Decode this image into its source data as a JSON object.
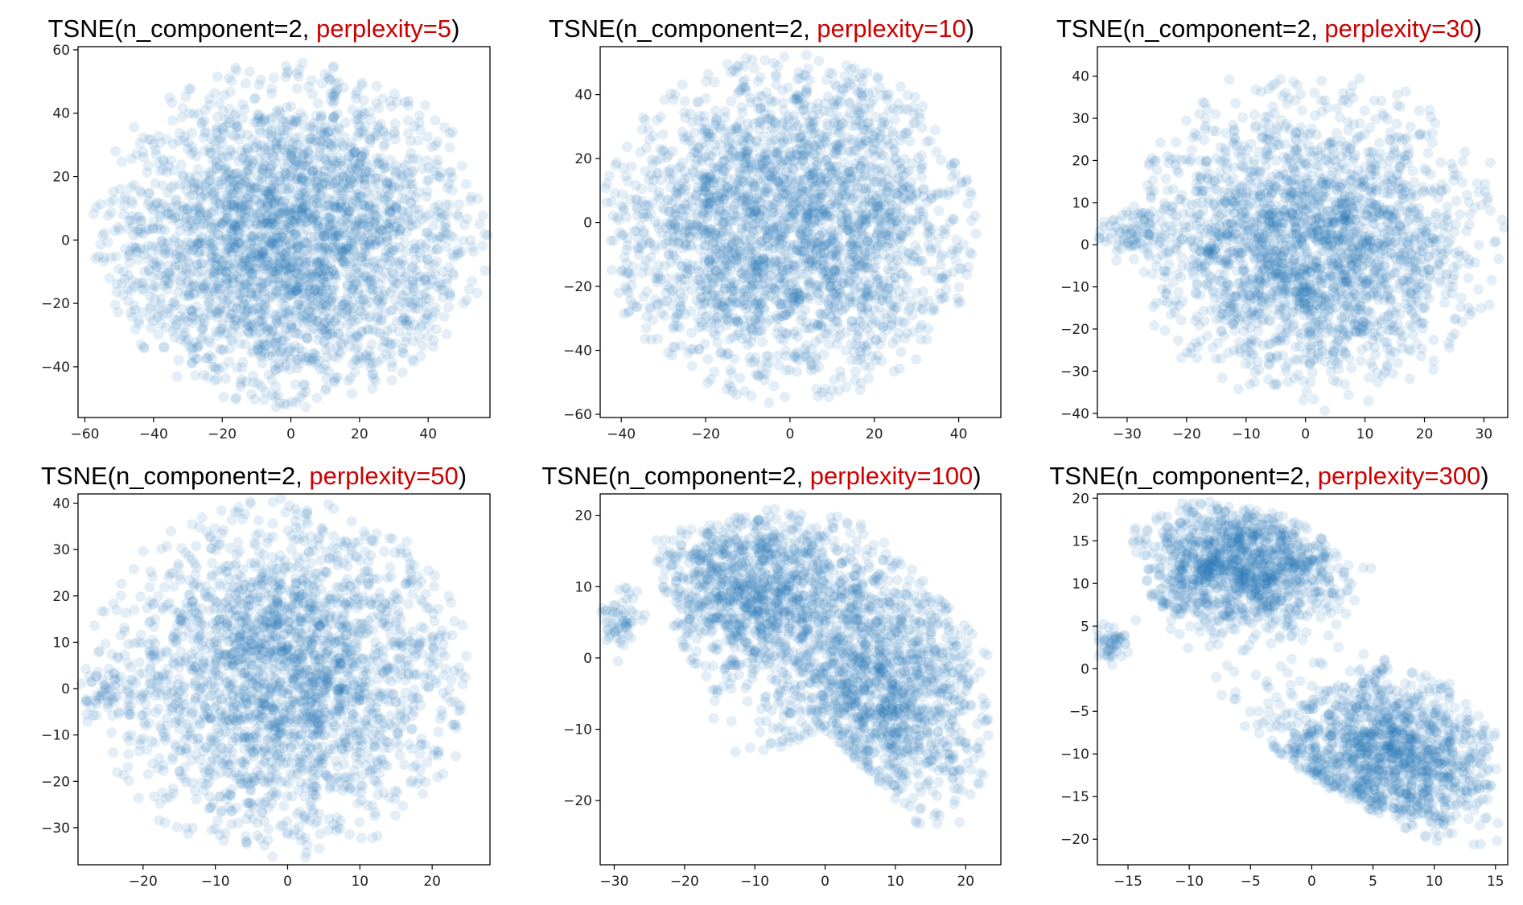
{
  "figure": {
    "panels": [
      {
        "title_prefix": "TSNE(n_component=2, ",
        "title_highlight": "perplexity=5",
        "title_suffix": ")"
      },
      {
        "title_prefix": "TSNE(n_component=2, ",
        "title_highlight": "perplexity=10",
        "title_suffix": ")"
      },
      {
        "title_prefix": "TSNE(n_component=2, ",
        "title_highlight": "perplexity=30",
        "title_suffix": ")"
      },
      {
        "title_prefix": "TSNE(n_component=2, ",
        "title_highlight": "perplexity=50",
        "title_suffix": ")"
      },
      {
        "title_prefix": "TSNE(n_component=2, ",
        "title_highlight": "perplexity=100",
        "title_suffix": ")"
      },
      {
        "title_prefix": "TSNE(n_component=2, ",
        "title_highlight": "perplexity=300",
        "title_suffix": ")"
      }
    ]
  },
  "colors": {
    "points": "#1f77b4",
    "highlight": "#cc0000"
  },
  "chart_data": [
    {
      "type": "scatter",
      "title": "TSNE(n_component=2, perplexity=5)",
      "xlim": [
        -62,
        58
      ],
      "ylim": [
        -56,
        61
      ],
      "xticks": [
        -60,
        -40,
        -20,
        0,
        20,
        40
      ],
      "yticks": [
        -40,
        -20,
        0,
        20,
        40,
        60
      ],
      "xtick_labels": [
        "−60",
        "−40",
        "−20",
        "0",
        "20",
        "40"
      ],
      "ytick_labels": [
        "−40",
        "−20",
        "0",
        "20",
        "40",
        "60"
      ],
      "clusters": [
        {
          "cx": 0,
          "cy": 0,
          "sx": 27,
          "sy": 25,
          "n": 2800
        }
      ],
      "shape": {
        "type": "ellipse",
        "cx": 0,
        "cy": 2,
        "rx": 58,
        "ry": 55
      }
    },
    {
      "type": "scatter",
      "title": "TSNE(n_component=2, perplexity=10)",
      "xlim": [
        -45,
        50
      ],
      "ylim": [
        -61,
        55
      ],
      "xticks": [
        -40,
        -20,
        0,
        20,
        40
      ],
      "yticks": [
        -60,
        -40,
        -20,
        0,
        20,
        40
      ],
      "xtick_labels": [
        "−40",
        "−20",
        "0",
        "20",
        "40"
      ],
      "ytick_labels": [
        "−60",
        "−40",
        "−20",
        "0",
        "20",
        "40"
      ],
      "clusters": [
        {
          "cx": 0,
          "cy": 0,
          "sx": 22,
          "sy": 26,
          "n": 2600
        }
      ],
      "shape": {
        "type": "ellipse",
        "cx": 0,
        "cy": -2,
        "rx": 45,
        "ry": 55
      }
    },
    {
      "type": "scatter",
      "title": "TSNE(n_component=2, perplexity=30)",
      "xlim": [
        -35,
        34
      ],
      "ylim": [
        -41,
        47
      ],
      "xticks": [
        -30,
        -20,
        -10,
        0,
        10,
        20,
        30
      ],
      "yticks": [
        -40,
        -30,
        -20,
        -10,
        0,
        10,
        20,
        30,
        40
      ],
      "xtick_labels": [
        "−30",
        "−20",
        "−10",
        "0",
        "10",
        "20",
        "30"
      ],
      "ytick_labels": [
        "−40",
        "−30",
        "−20",
        "−10",
        "0",
        "10",
        "20",
        "30",
        "40"
      ],
      "clusters": [
        {
          "cx": 0,
          "cy": 0,
          "sx": 14,
          "sy": 16,
          "n": 2300
        },
        {
          "cx": -30,
          "cy": 3,
          "sx": 3,
          "sy": 3,
          "n": 70
        }
      ],
      "shape": {
        "type": "ellipse",
        "cx": 2,
        "cy": 2,
        "rx": 32,
        "ry": 42
      }
    },
    {
      "type": "scatter",
      "title": "TSNE(n_component=2, perplexity=50)",
      "xlim": [
        -29,
        28
      ],
      "ylim": [
        -38,
        42
      ],
      "xticks": [
        -20,
        -10,
        0,
        10,
        20
      ],
      "yticks": [
        -30,
        -20,
        -10,
        0,
        10,
        20,
        30,
        40
      ],
      "xtick_labels": [
        "−20",
        "−10",
        "0",
        "10",
        "20"
      ],
      "ytick_labels": [
        "−30",
        "−20",
        "−10",
        "0",
        "10",
        "20",
        "30",
        "40"
      ],
      "clusters": [
        {
          "cx": 0,
          "cy": 3,
          "sx": 12,
          "sy": 18,
          "n": 2300
        },
        {
          "cx": -25,
          "cy": -2,
          "sx": 2.5,
          "sy": 3,
          "n": 60
        }
      ],
      "shape": {
        "type": "ellipse",
        "cx": -1,
        "cy": 2,
        "rx": 27,
        "ry": 39
      }
    },
    {
      "type": "scatter",
      "title": "TSNE(n_component=2, perplexity=100)",
      "xlim": [
        -32,
        25
      ],
      "ylim": [
        -29,
        23
      ],
      "xticks": [
        -30,
        -20,
        -10,
        0,
        10,
        20
      ],
      "yticks": [
        -20,
        -10,
        0,
        10,
        20
      ],
      "xtick_labels": [
        "−30",
        "−20",
        "−10",
        "0",
        "10",
        "20"
      ],
      "ytick_labels": [
        "−20",
        "−10",
        "0",
        "10",
        "20"
      ],
      "clusters": [
        {
          "cx": -10,
          "cy": 10,
          "sx": 8,
          "sy": 6,
          "n": 1100
        },
        {
          "cx": 8,
          "cy": -5,
          "sx": 8,
          "sy": 9,
          "n": 1300
        },
        {
          "cx": -29,
          "cy": 5,
          "sx": 1.5,
          "sy": 2,
          "n": 60
        }
      ],
      "shape": {
        "type": "polygon",
        "points": [
          [
            -25,
            17
          ],
          [
            -8,
            21
          ],
          [
            5,
            20
          ],
          [
            15,
            10
          ],
          [
            24,
            0
          ],
          [
            23,
            -22
          ],
          [
            17,
            -28
          ],
          [
            10,
            -20
          ],
          [
            0,
            -10
          ],
          [
            -10,
            -14
          ],
          [
            -14,
            -15
          ],
          [
            -20,
            -2
          ]
        ]
      }
    },
    {
      "type": "scatter",
      "title": "TSNE(n_component=2, perplexity=300)",
      "xlim": [
        -17.5,
        16
      ],
      "ylim": [
        -23,
        20.5
      ],
      "xticks": [
        -15,
        -10,
        -5,
        0,
        5,
        10,
        15
      ],
      "yticks": [
        -20,
        -15,
        -10,
        -5,
        0,
        5,
        10,
        15,
        20
      ],
      "xtick_labels": [
        "−15",
        "−10",
        "−5",
        "0",
        "5",
        "10",
        "15"
      ],
      "ytick_labels": [
        "−20",
        "−15",
        "−10",
        "−5",
        "0",
        "5",
        "10",
        "15",
        "20"
      ],
      "clusters": [
        {
          "cx": -6,
          "cy": 12,
          "sx": 4.5,
          "sy": 4,
          "n": 1200
        },
        {
          "cx": 6,
          "cy": -10,
          "sx": 5,
          "sy": 5,
          "n": 1300
        },
        {
          "cx": -16.5,
          "cy": 3,
          "sx": 0.8,
          "sy": 1,
          "n": 50
        }
      ],
      "shape": {
        "type": "polygon",
        "points": [
          [
            -15,
            16
          ],
          [
            -10,
            20
          ],
          [
            -2,
            18
          ],
          [
            5,
            12
          ],
          [
            2,
            3
          ],
          [
            10,
            0
          ],
          [
            15,
            -7
          ],
          [
            16,
            -20
          ],
          [
            12,
            -22
          ],
          [
            0,
            -13
          ],
          [
            -7,
            -5
          ],
          [
            -10,
            0
          ],
          [
            -13,
            8
          ]
        ]
      }
    }
  ]
}
